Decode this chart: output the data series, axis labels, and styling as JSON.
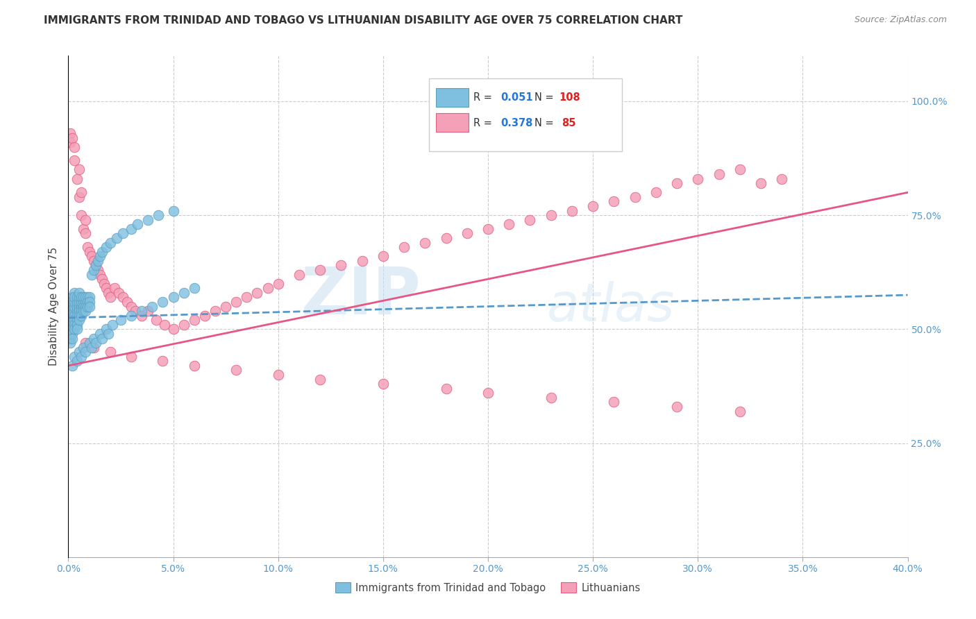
{
  "title": "IMMIGRANTS FROM TRINIDAD AND TOBAGO VS LITHUANIAN DISABILITY AGE OVER 75 CORRELATION CHART",
  "source": "Source: ZipAtlas.com",
  "ylabel": "Disability Age Over 75",
  "blue_color": "#7fbfdf",
  "blue_edge": "#5a9fc0",
  "pink_color": "#f4a0b8",
  "pink_edge": "#e06080",
  "trend_blue_color": "#5599cc",
  "trend_pink_color": "#e85585",
  "xlim": [
    0.0,
    0.4
  ],
  "ylim": [
    0.0,
    1.1
  ],
  "xticks": [
    0.0,
    0.05,
    0.1,
    0.15,
    0.2,
    0.25,
    0.3,
    0.35,
    0.4
  ],
  "yticks_right": [
    0.25,
    0.5,
    0.75,
    1.0
  ],
  "figsize": [
    14.06,
    8.92
  ],
  "dpi": 100,
  "blue_x": [
    0.001,
    0.001,
    0.001,
    0.001,
    0.001,
    0.001,
    0.001,
    0.001,
    0.001,
    0.001,
    0.002,
    0.002,
    0.002,
    0.002,
    0.002,
    0.002,
    0.002,
    0.002,
    0.002,
    0.002,
    0.003,
    0.003,
    0.003,
    0.003,
    0.003,
    0.003,
    0.003,
    0.003,
    0.003,
    0.004,
    0.004,
    0.004,
    0.004,
    0.004,
    0.004,
    0.004,
    0.004,
    0.005,
    0.005,
    0.005,
    0.005,
    0.005,
    0.005,
    0.005,
    0.006,
    0.006,
    0.006,
    0.006,
    0.006,
    0.007,
    0.007,
    0.007,
    0.007,
    0.008,
    0.008,
    0.008,
    0.008,
    0.009,
    0.009,
    0.009,
    0.01,
    0.01,
    0.01,
    0.011,
    0.012,
    0.013,
    0.014,
    0.015,
    0.016,
    0.018,
    0.02,
    0.023,
    0.026,
    0.03,
    0.033,
    0.038,
    0.043,
    0.05,
    0.003,
    0.005,
    0.007,
    0.01,
    0.012,
    0.015,
    0.018,
    0.021,
    0.002,
    0.004,
    0.006,
    0.008,
    0.011,
    0.013,
    0.016,
    0.019,
    0.025,
    0.03,
    0.035,
    0.04,
    0.045,
    0.05,
    0.055,
    0.06
  ],
  "blue_y": [
    0.52,
    0.53,
    0.51,
    0.5,
    0.55,
    0.48,
    0.56,
    0.47,
    0.54,
    0.49,
    0.53,
    0.54,
    0.52,
    0.51,
    0.55,
    0.5,
    0.57,
    0.49,
    0.56,
    0.48,
    0.54,
    0.55,
    0.53,
    0.52,
    0.56,
    0.51,
    0.58,
    0.5,
    0.57,
    0.54,
    0.55,
    0.53,
    0.52,
    0.56,
    0.51,
    0.57,
    0.5,
    0.55,
    0.56,
    0.54,
    0.53,
    0.57,
    0.52,
    0.58,
    0.55,
    0.56,
    0.54,
    0.53,
    0.57,
    0.56,
    0.57,
    0.55,
    0.54,
    0.56,
    0.57,
    0.55,
    0.54,
    0.57,
    0.56,
    0.55,
    0.57,
    0.56,
    0.55,
    0.62,
    0.63,
    0.64,
    0.65,
    0.66,
    0.67,
    0.68,
    0.69,
    0.7,
    0.71,
    0.72,
    0.73,
    0.74,
    0.75,
    0.76,
    0.44,
    0.45,
    0.46,
    0.47,
    0.48,
    0.49,
    0.5,
    0.51,
    0.42,
    0.43,
    0.44,
    0.45,
    0.46,
    0.47,
    0.48,
    0.49,
    0.52,
    0.53,
    0.54,
    0.55,
    0.56,
    0.57,
    0.58,
    0.59
  ],
  "pink_x": [
    0.001,
    0.001,
    0.002,
    0.003,
    0.003,
    0.004,
    0.005,
    0.005,
    0.006,
    0.006,
    0.007,
    0.008,
    0.008,
    0.009,
    0.01,
    0.011,
    0.012,
    0.013,
    0.014,
    0.015,
    0.016,
    0.017,
    0.018,
    0.019,
    0.02,
    0.022,
    0.024,
    0.026,
    0.028,
    0.03,
    0.032,
    0.035,
    0.038,
    0.042,
    0.046,
    0.05,
    0.055,
    0.06,
    0.065,
    0.07,
    0.075,
    0.08,
    0.085,
    0.09,
    0.095,
    0.1,
    0.11,
    0.12,
    0.13,
    0.14,
    0.15,
    0.16,
    0.17,
    0.18,
    0.19,
    0.2,
    0.21,
    0.22,
    0.23,
    0.24,
    0.25,
    0.26,
    0.27,
    0.28,
    0.29,
    0.3,
    0.31,
    0.32,
    0.33,
    0.34,
    0.008,
    0.012,
    0.02,
    0.03,
    0.045,
    0.06,
    0.08,
    0.1,
    0.12,
    0.15,
    0.18,
    0.2,
    0.23,
    0.26,
    0.29,
    0.32
  ],
  "pink_y": [
    0.93,
    0.91,
    0.92,
    0.9,
    0.87,
    0.83,
    0.79,
    0.85,
    0.75,
    0.8,
    0.72,
    0.71,
    0.74,
    0.68,
    0.67,
    0.66,
    0.65,
    0.64,
    0.63,
    0.62,
    0.61,
    0.6,
    0.59,
    0.58,
    0.57,
    0.59,
    0.58,
    0.57,
    0.56,
    0.55,
    0.54,
    0.53,
    0.54,
    0.52,
    0.51,
    0.5,
    0.51,
    0.52,
    0.53,
    0.54,
    0.55,
    0.56,
    0.57,
    0.58,
    0.59,
    0.6,
    0.62,
    0.63,
    0.64,
    0.65,
    0.66,
    0.68,
    0.69,
    0.7,
    0.71,
    0.72,
    0.73,
    0.74,
    0.75,
    0.76,
    0.77,
    0.78,
    0.79,
    0.8,
    0.82,
    0.83,
    0.84,
    0.85,
    0.82,
    0.83,
    0.47,
    0.46,
    0.45,
    0.44,
    0.43,
    0.42,
    0.41,
    0.4,
    0.39,
    0.38,
    0.37,
    0.36,
    0.35,
    0.34,
    0.33,
    0.32
  ],
  "blue_trend_x0": 0.0,
  "blue_trend_x1": 0.4,
  "blue_trend_y0": 0.525,
  "blue_trend_y1": 0.575,
  "pink_trend_x0": 0.0,
  "pink_trend_x1": 0.4,
  "pink_trend_y0": 0.42,
  "pink_trend_y1": 0.8
}
